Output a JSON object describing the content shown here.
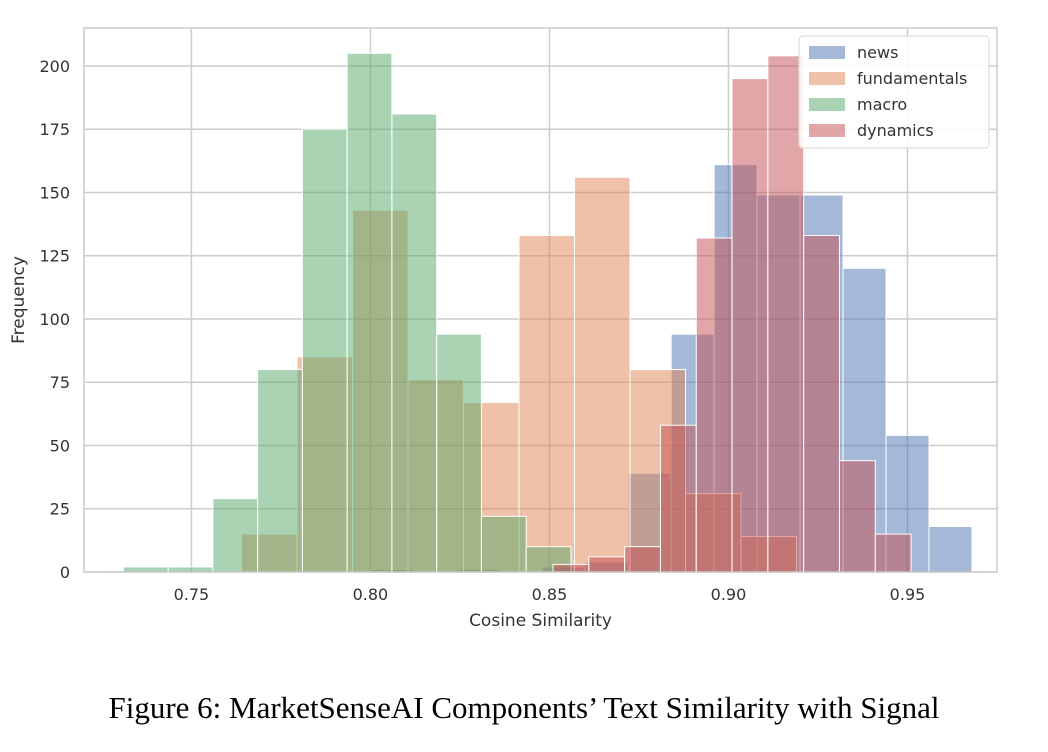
{
  "caption": "Figure 6: MarketSenseAI Components’ Text Similarity with Signal",
  "chart_data": {
    "type": "histogram",
    "xlabel": "Cosine Similarity",
    "ylabel": "Frequency",
    "xlim": [
      0.72,
      0.975
    ],
    "ylim": [
      0,
      215
    ],
    "xticks": [
      0.75,
      0.8,
      0.85,
      0.9,
      0.95
    ],
    "xtick_labels": [
      "0.75",
      "0.80",
      "0.85",
      "0.90",
      "0.95"
    ],
    "yticks": [
      0,
      25,
      50,
      75,
      100,
      125,
      150,
      175,
      200
    ],
    "ytick_labels": [
      "0",
      "25",
      "50",
      "75",
      "100",
      "125",
      "150",
      "175",
      "200"
    ],
    "grid": true,
    "legend_position": "top-right",
    "bar_alpha": 0.5,
    "series": [
      {
        "name": "news",
        "color": "#4c72b0",
        "bins": [
          {
            "x0": 0.8,
            "x1": 0.812,
            "count": 1
          },
          {
            "x0": 0.812,
            "x1": 0.824,
            "count": 0
          },
          {
            "x0": 0.824,
            "x1": 0.836,
            "count": 1
          },
          {
            "x0": 0.836,
            "x1": 0.848,
            "count": 0
          },
          {
            "x0": 0.848,
            "x1": 0.86,
            "count": 2
          },
          {
            "x0": 0.86,
            "x1": 0.872,
            "count": 4
          },
          {
            "x0": 0.872,
            "x1": 0.884,
            "count": 39
          },
          {
            "x0": 0.884,
            "x1": 0.896,
            "count": 94
          },
          {
            "x0": 0.896,
            "x1": 0.908,
            "count": 161
          },
          {
            "x0": 0.908,
            "x1": 0.92,
            "count": 149
          },
          {
            "x0": 0.92,
            "x1": 0.932,
            "count": 149
          },
          {
            "x0": 0.932,
            "x1": 0.944,
            "count": 120
          },
          {
            "x0": 0.944,
            "x1": 0.956,
            "count": 54
          },
          {
            "x0": 0.956,
            "x1": 0.968,
            "count": 18
          }
        ]
      },
      {
        "name": "fundamentals",
        "color": "#dd8452",
        "bins": [
          {
            "x0": 0.764,
            "x1": 0.7795,
            "count": 15
          },
          {
            "x0": 0.7795,
            "x1": 0.795,
            "count": 85
          },
          {
            "x0": 0.795,
            "x1": 0.8105,
            "count": 143
          },
          {
            "x0": 0.8105,
            "x1": 0.826,
            "count": 76
          },
          {
            "x0": 0.826,
            "x1": 0.8415,
            "count": 67
          },
          {
            "x0": 0.8415,
            "x1": 0.857,
            "count": 133
          },
          {
            "x0": 0.857,
            "x1": 0.8725,
            "count": 156
          },
          {
            "x0": 0.8725,
            "x1": 0.888,
            "count": 80
          },
          {
            "x0": 0.888,
            "x1": 0.9035,
            "count": 31
          },
          {
            "x0": 0.9035,
            "x1": 0.919,
            "count": 14
          }
        ]
      },
      {
        "name": "macro",
        "color": "#55a868",
        "bins": [
          {
            "x0": 0.731,
            "x1": 0.7435,
            "count": 2
          },
          {
            "x0": 0.7435,
            "x1": 0.756,
            "count": 2
          },
          {
            "x0": 0.756,
            "x1": 0.7685,
            "count": 29
          },
          {
            "x0": 0.7685,
            "x1": 0.781,
            "count": 80
          },
          {
            "x0": 0.781,
            "x1": 0.7935,
            "count": 175
          },
          {
            "x0": 0.7935,
            "x1": 0.806,
            "count": 205
          },
          {
            "x0": 0.806,
            "x1": 0.8185,
            "count": 181
          },
          {
            "x0": 0.8185,
            "x1": 0.831,
            "count": 94
          },
          {
            "x0": 0.831,
            "x1": 0.8435,
            "count": 22
          },
          {
            "x0": 0.8435,
            "x1": 0.856,
            "count": 10
          }
        ]
      },
      {
        "name": "dynamics",
        "color": "#c44e52",
        "bins": [
          {
            "x0": 0.851,
            "x1": 0.861,
            "count": 3
          },
          {
            "x0": 0.861,
            "x1": 0.871,
            "count": 6
          },
          {
            "x0": 0.871,
            "x1": 0.881,
            "count": 10
          },
          {
            "x0": 0.881,
            "x1": 0.891,
            "count": 58
          },
          {
            "x0": 0.891,
            "x1": 0.901,
            "count": 132
          },
          {
            "x0": 0.901,
            "x1": 0.911,
            "count": 195
          },
          {
            "x0": 0.911,
            "x1": 0.921,
            "count": 204
          },
          {
            "x0": 0.921,
            "x1": 0.931,
            "count": 133
          },
          {
            "x0": 0.931,
            "x1": 0.941,
            "count": 44
          },
          {
            "x0": 0.941,
            "x1": 0.951,
            "count": 15
          }
        ]
      }
    ]
  }
}
